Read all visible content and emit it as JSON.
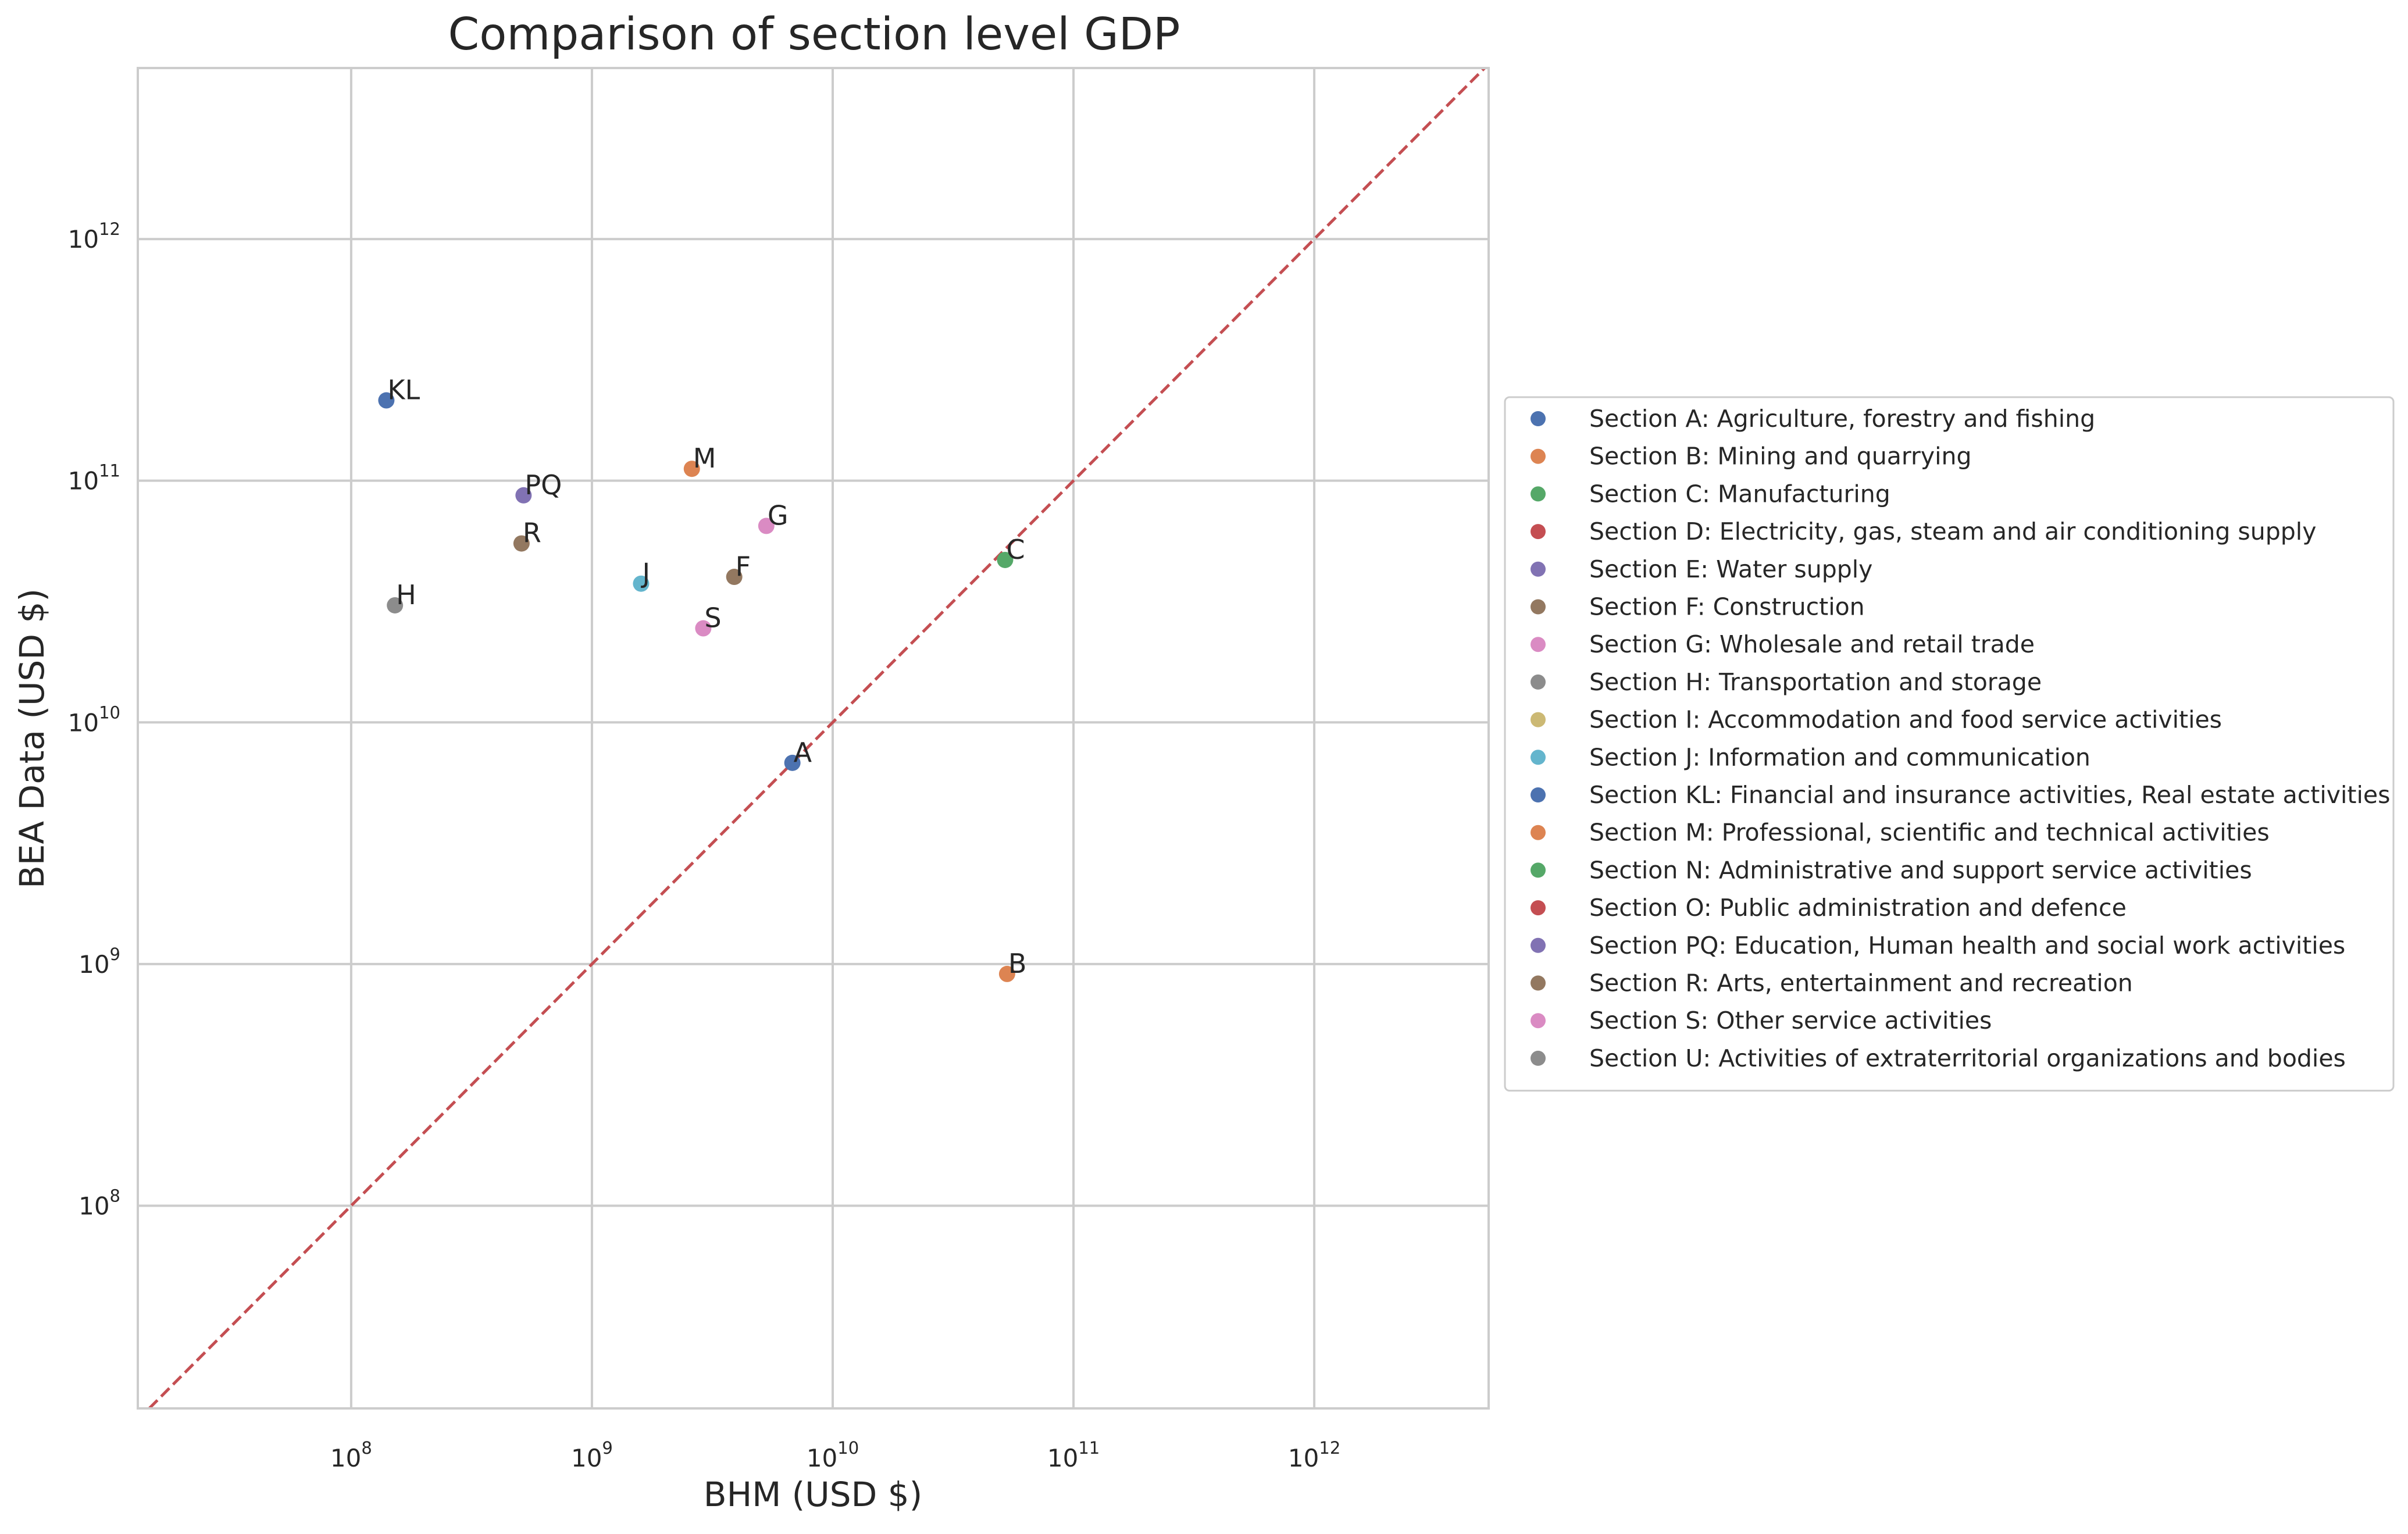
{
  "chart_data": {
    "type": "scatter",
    "title": "Comparison of section level GDP",
    "xlabel": "BHM (USD $)",
    "ylabel": "BEA Data (USD $)",
    "xscale": "log",
    "yscale": "log",
    "xlim": [
      13000000,
      5300000000000
    ],
    "ylim": [
      14500000,
      5100000000000
    ],
    "xticks": [
      {
        "base": "10",
        "exp": "8",
        "value": 100000000
      },
      {
        "base": "10",
        "exp": "9",
        "value": 1000000000
      },
      {
        "base": "10",
        "exp": "10",
        "value": 10000000000
      },
      {
        "base": "10",
        "exp": "11",
        "value": 100000000000
      },
      {
        "base": "10",
        "exp": "12",
        "value": 1000000000000
      }
    ],
    "yticks": [
      {
        "base": "10",
        "exp": "8",
        "value": 100000000
      },
      {
        "base": "10",
        "exp": "9",
        "value": 1000000000
      },
      {
        "base": "10",
        "exp": "10",
        "value": 10000000000
      },
      {
        "base": "10",
        "exp": "11",
        "value": 100000000000
      },
      {
        "base": "10",
        "exp": "12",
        "value": 1000000000000
      }
    ],
    "grid": true,
    "legend_position": "right, outside",
    "reference_line": {
      "type": "y = x",
      "color": "#c44e52",
      "style": "dashed"
    },
    "points": [
      {
        "label": "KL",
        "x": 140000000,
        "y": 215000000000,
        "color": "#4c72b0"
      },
      {
        "label": "PQ",
        "x": 520000000,
        "y": 87000000000,
        "color": "#8172b3"
      },
      {
        "label": "R",
        "x": 510000000,
        "y": 55000000000,
        "color": "#937860"
      },
      {
        "label": "H",
        "x": 152000000,
        "y": 30500000000,
        "color": "#8c8c8c"
      },
      {
        "label": "M",
        "x": 2600000000,
        "y": 112000000000,
        "color": "#dd8452"
      },
      {
        "label": "G",
        "x": 5300000000,
        "y": 65000000000,
        "color": "#da8bc3"
      },
      {
        "label": "J",
        "x": 1600000000,
        "y": 37500000000,
        "color": "#64b5cd"
      },
      {
        "label": "F",
        "x": 3900000000,
        "y": 40000000000,
        "color": "#937860"
      },
      {
        "label": "S",
        "x": 2900000000,
        "y": 24500000000,
        "color": "#da8bc3"
      },
      {
        "label": "C",
        "x": 52000000000,
        "y": 47000000000,
        "color": "#55a868"
      },
      {
        "label": "A",
        "x": 6800000000,
        "y": 6800000000,
        "color": "#4c72b0"
      },
      {
        "label": "B",
        "x": 53000000000,
        "y": 910000000,
        "color": "#dd8452"
      }
    ],
    "legend": [
      {
        "label": "Section A: Agriculture, forestry and fishing",
        "color": "#4c72b0"
      },
      {
        "label": "Section B: Mining and quarrying",
        "color": "#dd8452"
      },
      {
        "label": "Section C: Manufacturing",
        "color": "#55a868"
      },
      {
        "label": "Section D: Electricity, gas, steam and air conditioning supply",
        "color": "#c44e52"
      },
      {
        "label": "Section E: Water supply",
        "color": "#8172b3"
      },
      {
        "label": "Section F: Construction",
        "color": "#937860"
      },
      {
        "label": "Section G: Wholesale and retail trade",
        "color": "#da8bc3"
      },
      {
        "label": "Section H: Transportation and storage",
        "color": "#8c8c8c"
      },
      {
        "label": "Section I: Accommodation and food service activities",
        "color": "#ccb974"
      },
      {
        "label": "Section J: Information and communication",
        "color": "#64b5cd"
      },
      {
        "label": "Section KL: Financial and insurance activities, Real estate activities",
        "color": "#4c72b0"
      },
      {
        "label": "Section M: Professional, scientific and technical activities",
        "color": "#dd8452"
      },
      {
        "label": "Section N: Administrative and support service activities",
        "color": "#55a868"
      },
      {
        "label": "Section O: Public administration and defence",
        "color": "#c44e52"
      },
      {
        "label": "Section PQ: Education, Human health and social work activities",
        "color": "#8172b3"
      },
      {
        "label": "Section R: Arts, entertainment and recreation",
        "color": "#937860"
      },
      {
        "label": "Section S: Other service activities",
        "color": "#da8bc3"
      },
      {
        "label": "Section U: Activities of extraterritorial organizations and bodies",
        "color": "#8c8c8c"
      }
    ]
  }
}
